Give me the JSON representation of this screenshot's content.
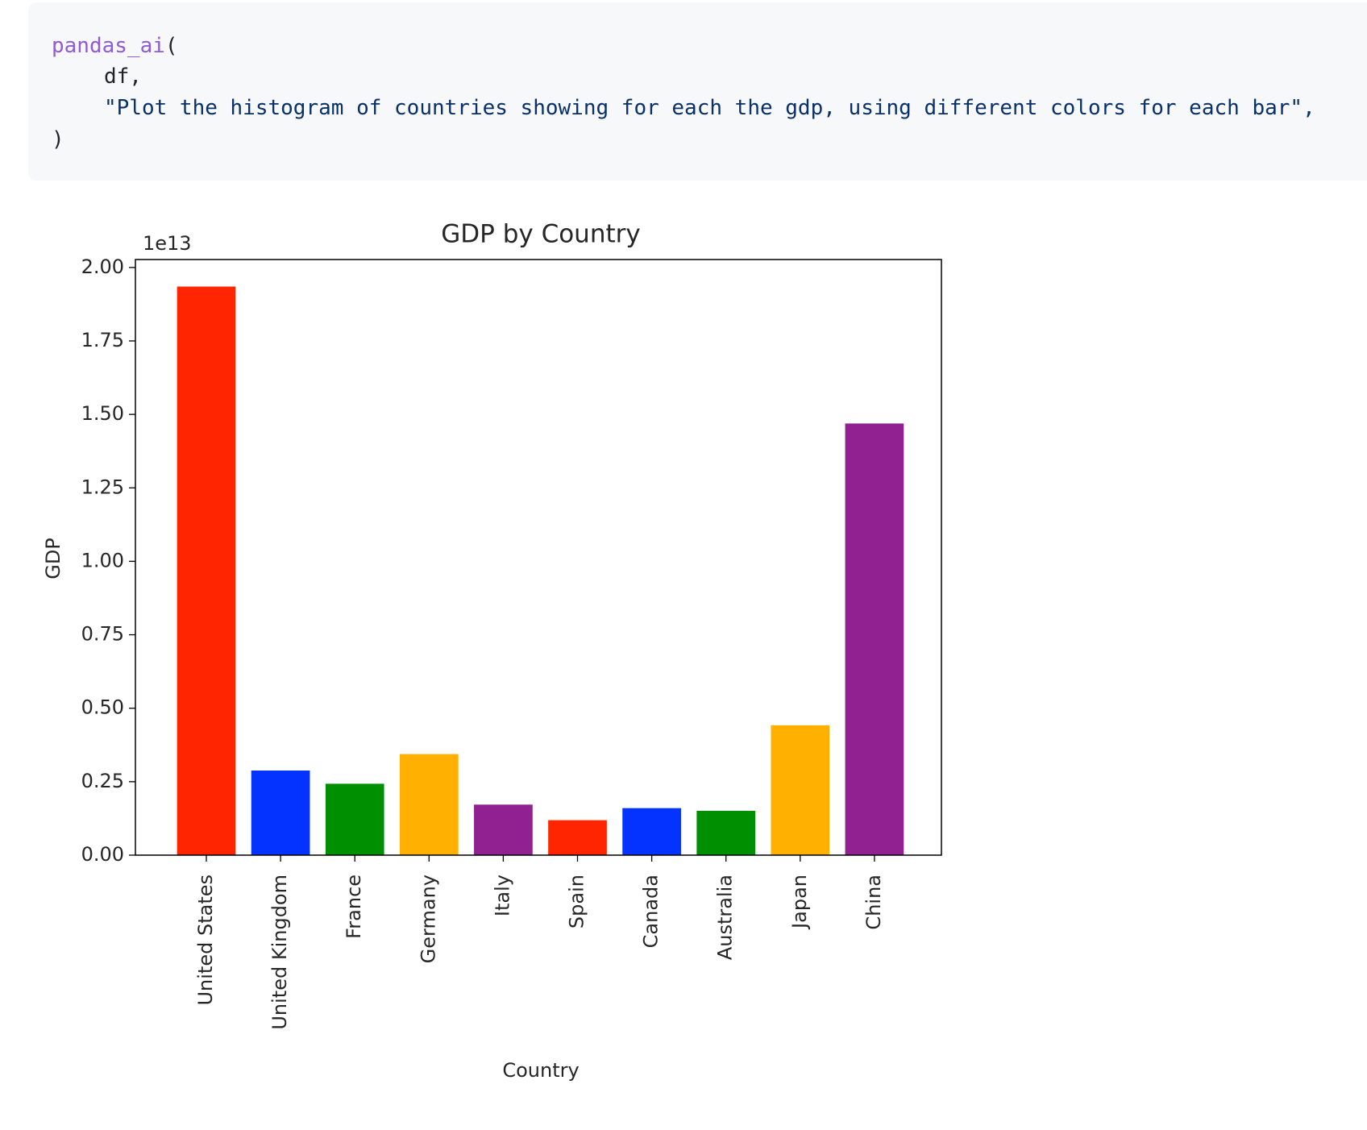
{
  "code": {
    "function": "pandas_ai",
    "open": "(",
    "arg1": "df,",
    "arg2": "\"Plot the histogram of countries showing for each the gdp, using different colors for each bar\",",
    "close": ")"
  },
  "chart_data": {
    "type": "bar",
    "title": "GDP by Country",
    "x_label": "Country",
    "y_label": "GDP",
    "offset_label": "1e13",
    "categories": [
      "United States",
      "United Kingdom",
      "France",
      "Germany",
      "Italy",
      "Spain",
      "Canada",
      "Australia",
      "Japan",
      "China"
    ],
    "values": [
      1.935,
      0.288,
      0.243,
      0.344,
      0.172,
      0.119,
      0.16,
      0.151,
      0.442,
      1.469
    ],
    "colors": [
      "#fe2500",
      "#0433ff",
      "#008f00",
      "#ffb000",
      "#912191",
      "#fe2500",
      "#0433ff",
      "#008f00",
      "#ffb000",
      "#912191"
    ],
    "ylim": [
      0,
      2.027
    ],
    "yticks": [
      {
        "value": 0,
        "label": "0.00"
      },
      {
        "value": 0.25,
        "label": "0.25"
      },
      {
        "value": 0.5,
        "label": "0.50"
      },
      {
        "value": 0.75,
        "label": "0.75"
      },
      {
        "value": 1,
        "label": "1.00"
      },
      {
        "value": 1.25,
        "label": "1.25"
      },
      {
        "value": 1.5,
        "label": "1.50"
      },
      {
        "value": 1.75,
        "label": "1.75"
      },
      {
        "value": 2,
        "label": "2.00"
      }
    ],
    "grid": false
  }
}
